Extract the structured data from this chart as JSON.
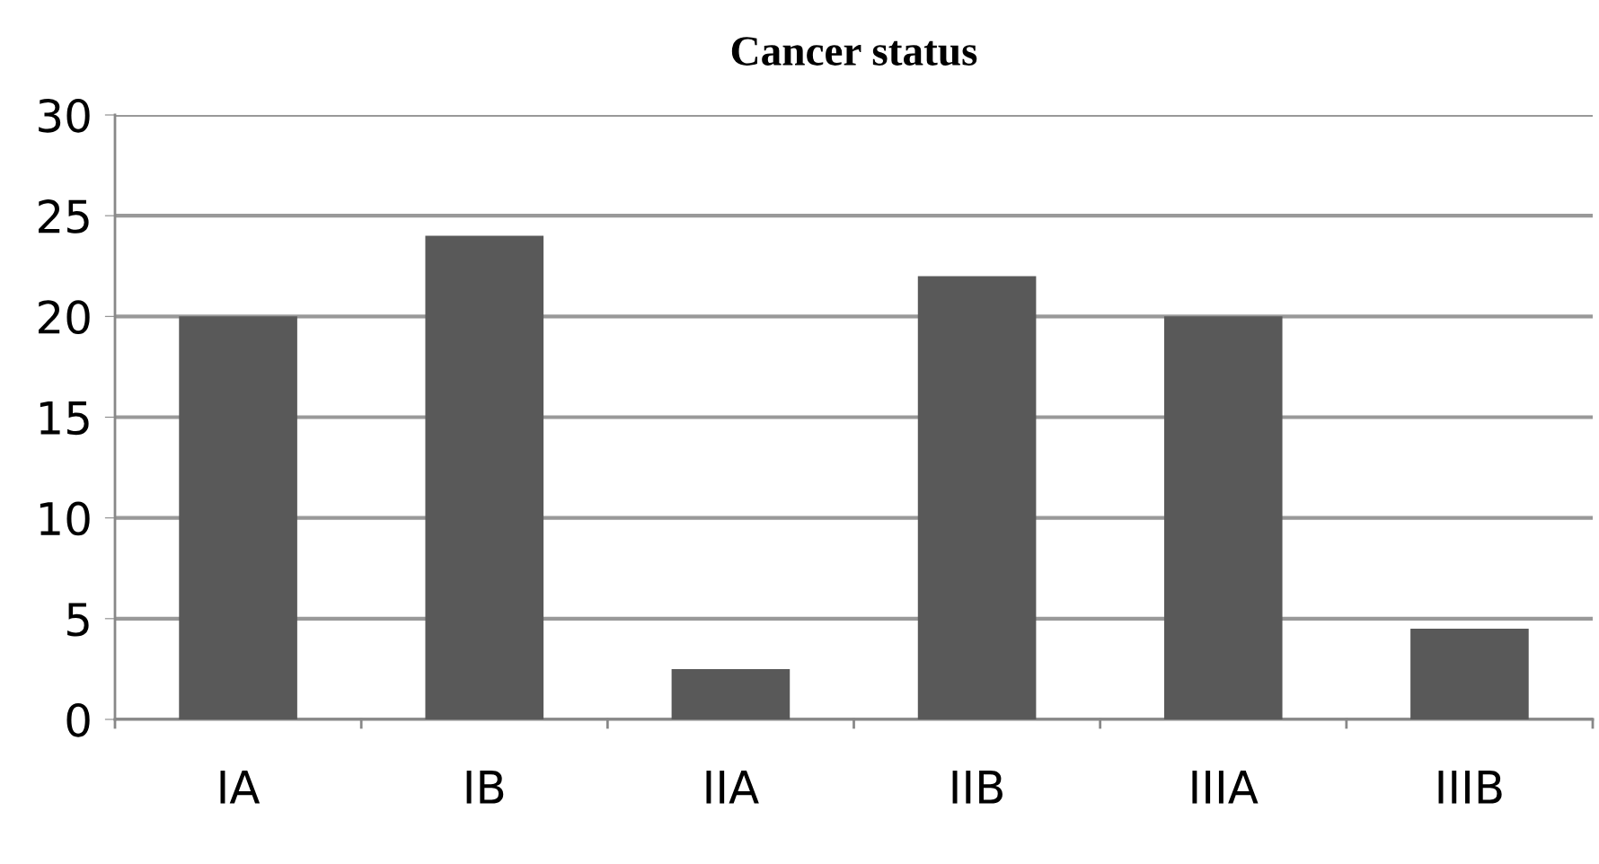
{
  "chart_data": {
    "type": "bar",
    "title": "Cancer status",
    "categories": [
      "IA",
      "IB",
      "IIA",
      "IIB",
      "IIIA",
      "IIIB"
    ],
    "values": [
      20,
      24,
      2.5,
      22,
      20,
      4.5
    ],
    "color": "#595959",
    "ylim": [
      0,
      30
    ],
    "yticks": [
      0,
      5,
      10,
      15,
      20,
      25,
      30
    ],
    "grid": "y"
  }
}
